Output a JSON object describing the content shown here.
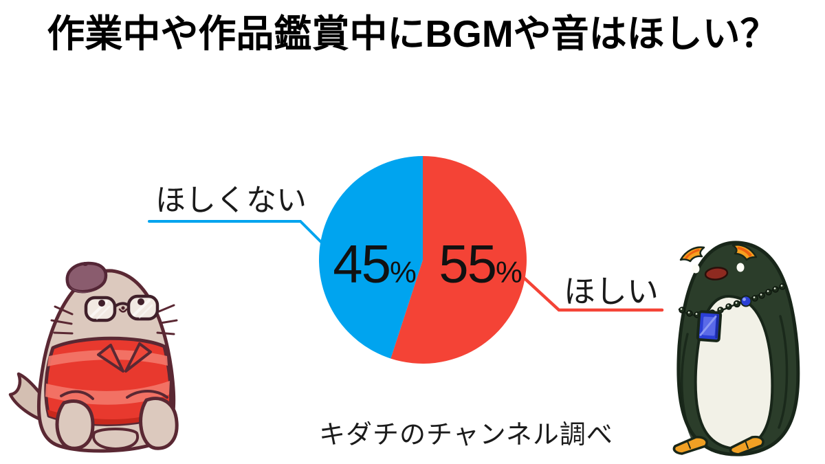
{
  "page": {
    "title": "作業中や作品鑑賞中にBGMや音はほしい？",
    "source_note": "キダチのチャンネル調べ",
    "background_color": "#ffffff"
  },
  "chart_data": {
    "type": "pie",
    "title": "作業中や作品鑑賞中にBGMや音はほしい？",
    "categories": [
      "ほしい",
      "ほしくない"
    ],
    "values": [
      55,
      45
    ],
    "unit": "%",
    "colors": [
      "#f44336",
      "#00a4ef"
    ],
    "start_angle_deg": 0,
    "direction": "clockwise",
    "inside_labels": [
      "55%",
      "45%"
    ],
    "callout_labels": [
      "ほしい",
      "ほしくない"
    ],
    "legend_position": "callout-lines",
    "source_note": "キダチのチャンネル調べ"
  },
  "labels": {
    "left_slice_digits": "45",
    "right_slice_digits": "55",
    "percent_sign": "%",
    "left_callout": "ほしくない",
    "right_callout": "ほしい"
  },
  "characters": {
    "left": "seal-with-beret-glasses-red-striped-sweater",
    "right": "penguin-with-orange-eyebrows-jewel-necklace"
  }
}
